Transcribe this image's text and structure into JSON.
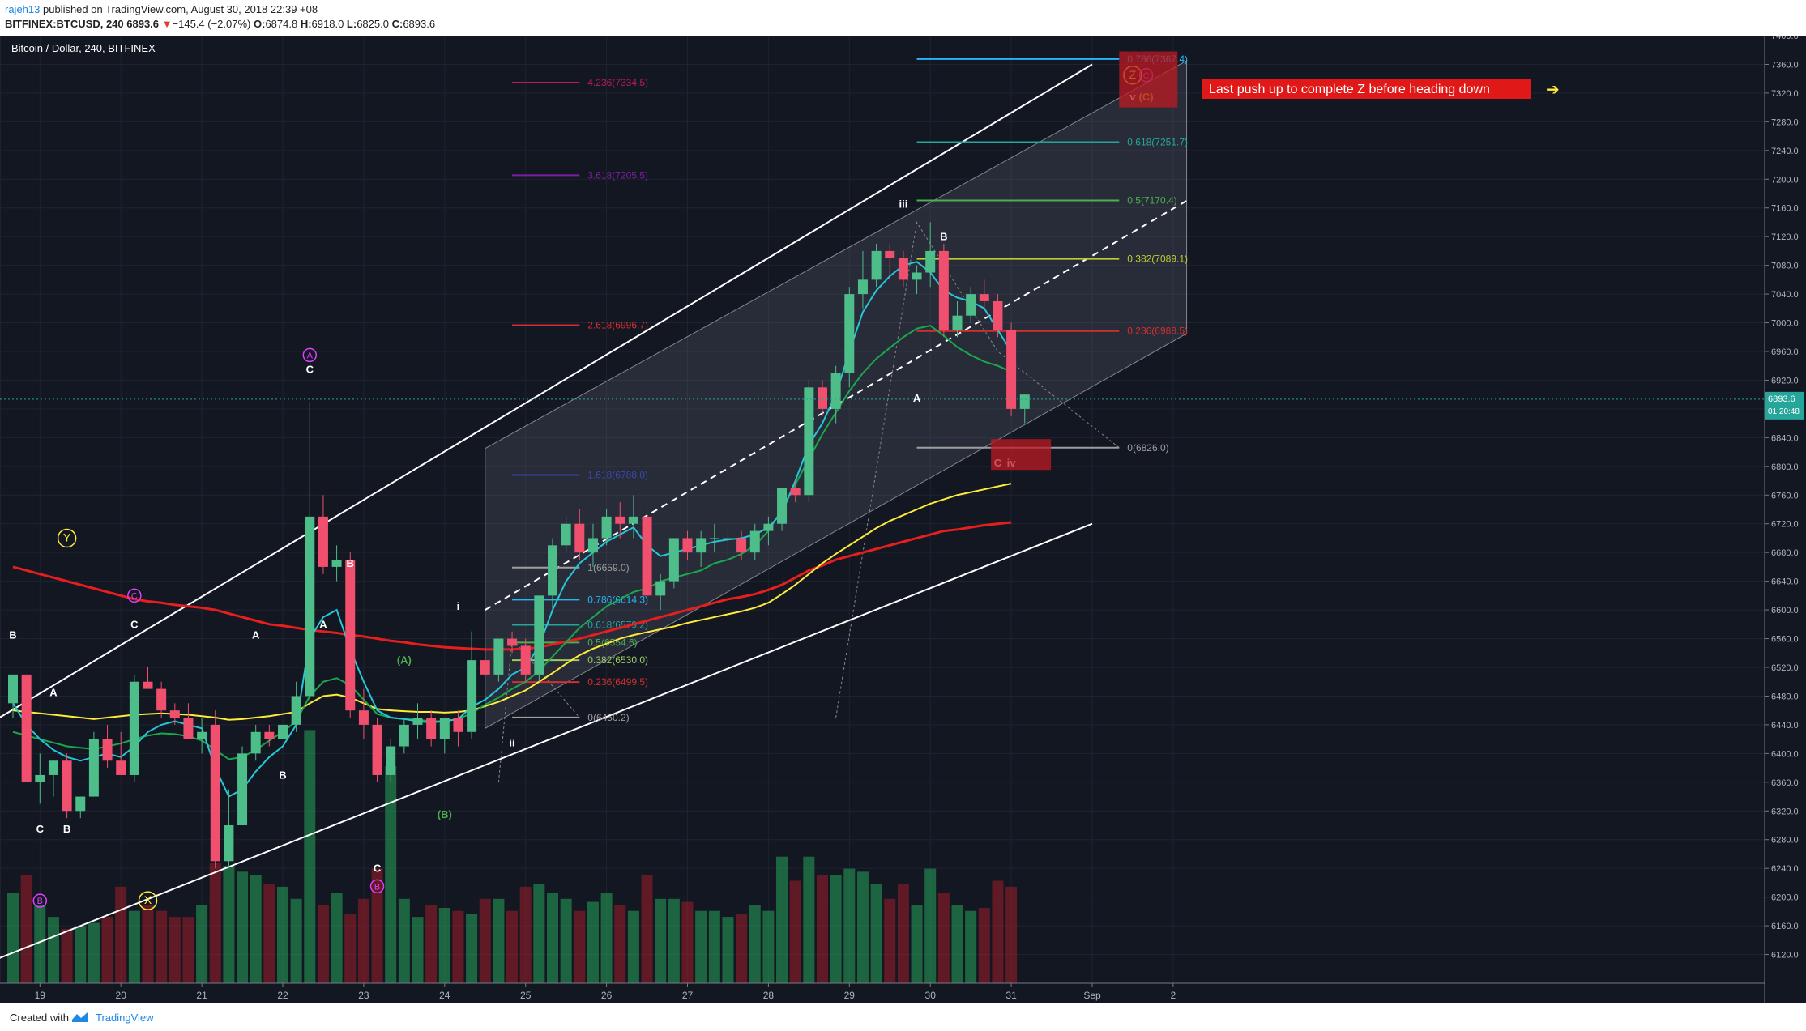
{
  "header": {
    "user": "rajeh13",
    "published": " published on TradingView.com, August 30, 2018 22:39 +08",
    "symbol": "BITFINEX:BTCUSD, 240",
    "price": " 6893.6 ",
    "arrow": "▼",
    "change": "−145.4 (−2.07%)",
    "o_label": " O:",
    "o": "6874.8",
    "h_label": " H:",
    "h": "6918.0",
    "l_label": " L:",
    "l": "6825.0",
    "c_label": " C:",
    "c": "6893.6"
  },
  "footer": {
    "created": "Created with",
    "brand": "TradingView"
  },
  "chart_data": {
    "type": "candlestick",
    "title": "Bitcoin / Dollar, 240, BITFINEX",
    "ylim": [
      6080,
      7400
    ],
    "y_ticks": [
      "7400.0",
      "7360.0",
      "7320.0",
      "7280.0",
      "7240.0",
      "7200.0",
      "7160.0",
      "7120.0",
      "7080.0",
      "7040.0",
      "7000.0",
      "6960.0",
      "6920.0",
      "6880.0",
      "6840.0",
      "6800.0",
      "6760.0",
      "6720.0",
      "6680.0",
      "6640.0",
      "6600.0",
      "6560.0",
      "6520.0",
      "6480.0",
      "6440.0",
      "6400.0",
      "6360.0",
      "6320.0",
      "6280.0",
      "6240.0",
      "6200.0",
      "6160.0",
      "6120.0"
    ],
    "x_ticks": [
      {
        "label": "19",
        "i": 2
      },
      {
        "label": "20",
        "i": 8
      },
      {
        "label": "21",
        "i": 14
      },
      {
        "label": "22",
        "i": 20
      },
      {
        "label": "23",
        "i": 26
      },
      {
        "label": "24",
        "i": 32
      },
      {
        "label": "25",
        "i": 38
      },
      {
        "label": "26",
        "i": 44
      },
      {
        "label": "27",
        "i": 50
      },
      {
        "label": "28",
        "i": 56
      },
      {
        "label": "29",
        "i": 62
      },
      {
        "label": "30",
        "i": 68
      },
      {
        "label": "31",
        "i": 74
      },
      {
        "label": "Sep",
        "i": 80
      },
      {
        "label": "2",
        "i": 86
      }
    ],
    "last_price": "6893.6",
    "countdown": "01:20:48",
    "candles": [
      [
        6470,
        6510,
        6450,
        6510
      ],
      [
        6510,
        6510,
        6360,
        6360
      ],
      [
        6360,
        6400,
        6330,
        6370
      ],
      [
        6370,
        6390,
        6340,
        6390
      ],
      [
        6390,
        6400,
        6310,
        6320
      ],
      [
        6320,
        6340,
        6310,
        6340
      ],
      [
        6340,
        6430,
        6340,
        6420
      ],
      [
        6420,
        6440,
        6380,
        6390
      ],
      [
        6390,
        6430,
        6370,
        6370
      ],
      [
        6370,
        6510,
        6360,
        6500
      ],
      [
        6500,
        6520,
        6490,
        6490
      ],
      [
        6490,
        6500,
        6450,
        6460
      ],
      [
        6460,
        6470,
        6440,
        6450
      ],
      [
        6450,
        6470,
        6420,
        6420
      ],
      [
        6420,
        6450,
        6400,
        6430
      ],
      [
        6440,
        6460,
        6240,
        6250
      ],
      [
        6250,
        6350,
        6240,
        6300
      ],
      [
        6300,
        6410,
        6300,
        6400
      ],
      [
        6400,
        6440,
        6390,
        6430
      ],
      [
        6430,
        6440,
        6410,
        6420
      ],
      [
        6420,
        6440,
        6420,
        6440
      ],
      [
        6440,
        6500,
        6430,
        6480
      ],
      [
        6480,
        6890,
        6470,
        6730
      ],
      [
        6730,
        6760,
        6650,
        6660
      ],
      [
        6660,
        6690,
        6640,
        6670
      ],
      [
        6670,
        6680,
        6450,
        6460
      ],
      [
        6460,
        6490,
        6420,
        6440
      ],
      [
        6440,
        6450,
        6360,
        6370
      ],
      [
        6370,
        6420,
        6360,
        6410
      ],
      [
        6410,
        6450,
        6400,
        6440
      ],
      [
        6440,
        6470,
        6420,
        6450
      ],
      [
        6450,
        6460,
        6410,
        6420
      ],
      [
        6420,
        6450,
        6400,
        6450
      ],
      [
        6450,
        6460,
        6410,
        6430
      ],
      [
        6430,
        6570,
        6420,
        6530
      ],
      [
        6530,
        6550,
        6510,
        6510
      ],
      [
        6510,
        6560,
        6500,
        6560
      ],
      [
        6560,
        6570,
        6540,
        6550
      ],
      [
        6550,
        6560,
        6500,
        6510
      ],
      [
        6510,
        6620,
        6500,
        6620
      ],
      [
        6620,
        6700,
        6600,
        6690
      ],
      [
        6690,
        6730,
        6680,
        6720
      ],
      [
        6720,
        6740,
        6670,
        6680
      ],
      [
        6680,
        6720,
        6660,
        6700
      ],
      [
        6700,
        6740,
        6690,
        6730
      ],
      [
        6730,
        6750,
        6700,
        6720
      ],
      [
        6720,
        6760,
        6700,
        6730
      ],
      [
        6730,
        6740,
        6610,
        6620
      ],
      [
        6620,
        6650,
        6600,
        6640
      ],
      [
        6640,
        6700,
        6630,
        6700
      ],
      [
        6700,
        6710,
        6670,
        6680
      ],
      [
        6680,
        6710,
        6660,
        6700
      ],
      [
        6700,
        6720,
        6680,
        6700
      ],
      [
        6700,
        6710,
        6670,
        6700
      ],
      [
        6700,
        6710,
        6670,
        6680
      ],
      [
        6680,
        6720,
        6670,
        6710
      ],
      [
        6710,
        6730,
        6690,
        6720
      ],
      [
        6720,
        6760,
        6710,
        6770
      ],
      [
        6770,
        6780,
        6750,
        6760
      ],
      [
        6760,
        6920,
        6750,
        6910
      ],
      [
        6910,
        6920,
        6870,
        6880
      ],
      [
        6880,
        6940,
        6860,
        6930
      ],
      [
        6930,
        7050,
        6910,
        7040
      ],
      [
        7040,
        7100,
        7020,
        7060
      ],
      [
        7060,
        7110,
        7050,
        7100
      ],
      [
        7100,
        7110,
        7060,
        7090
      ],
      [
        7090,
        7100,
        7050,
        7060
      ],
      [
        7060,
        7080,
        7040,
        7070
      ],
      [
        7070,
        7140,
        7050,
        7100
      ],
      [
        7100,
        7110,
        6980,
        6990
      ],
      [
        6990,
        7030,
        6980,
        7010
      ],
      [
        7010,
        7050,
        7000,
        7040
      ],
      [
        7040,
        7060,
        7020,
        7030
      ],
      [
        7030,
        7040,
        6980,
        6990
      ],
      [
        6990,
        7000,
        6870,
        6880
      ],
      [
        6880,
        6900,
        6860,
        6900
      ]
    ],
    "volumes": [
      150,
      180,
      130,
      110,
      90,
      95,
      100,
      110,
      160,
      120,
      130,
      120,
      110,
      110,
      130,
      200,
      195,
      185,
      180,
      165,
      160,
      140,
      420,
      130,
      150,
      115,
      140,
      190,
      360,
      140,
      110,
      130,
      125,
      120,
      115,
      140,
      140,
      120,
      160,
      165,
      150,
      140,
      120,
      135,
      150,
      130,
      120,
      180,
      140,
      140,
      135,
      120,
      120,
      110,
      115,
      130,
      120,
      210,
      170,
      210,
      180,
      180,
      190,
      185,
      165,
      140,
      165,
      130,
      190,
      150,
      130,
      120,
      125,
      170,
      160
    ],
    "moving_averages": [
      {
        "color": "#e61e1e",
        "values": [
          6660,
          6655,
          6650,
          6645,
          6640,
          6635,
          6630,
          6625,
          6620,
          6615,
          6612,
          6610,
          6607,
          6605,
          6603,
          6600,
          6595,
          6590,
          6585,
          6580,
          6578,
          6575,
          6572,
          6570,
          6568,
          6565,
          6563,
          6560,
          6557,
          6555,
          6552,
          6550,
          6548,
          6547,
          6546,
          6545,
          6545,
          6545,
          6546,
          6548,
          6552,
          6556,
          6560,
          6565,
          6570,
          6575,
          6580,
          6585,
          6590,
          6595,
          6600,
          6605,
          6610,
          6615,
          6618,
          6622,
          6628,
          6635,
          6645,
          6655,
          6662,
          6670,
          6675,
          6680,
          6685,
          6690,
          6695,
          6700,
          6705,
          6710,
          6712,
          6715,
          6718,
          6720,
          6722
        ]
      },
      {
        "color": "#ffeb3b",
        "values": [
          6460,
          6458,
          6456,
          6454,
          6452,
          6450,
          6448,
          6450,
          6452,
          6454,
          6455,
          6456,
          6455,
          6454,
          6452,
          6450,
          6447,
          6448,
          6450,
          6452,
          6455,
          6458,
          6470,
          6480,
          6482,
          6478,
          6470,
          6462,
          6460,
          6459,
          6458,
          6458,
          6457,
          6458,
          6460,
          6466,
          6472,
          6480,
          6488,
          6500,
          6512,
          6525,
          6537,
          6546,
          6553,
          6560,
          6565,
          6569,
          6573,
          6577,
          6582,
          6586,
          6590,
          6594,
          6598,
          6603,
          6610,
          6622,
          6635,
          6650,
          6665,
          6678,
          6690,
          6702,
          6714,
          6724,
          6732,
          6740,
          6748,
          6754,
          6760,
          6764,
          6768,
          6772,
          6776
        ]
      },
      {
        "color": "#1aa84d",
        "values": [
          6430,
          6425,
          6420,
          6415,
          6410,
          6408,
          6406,
          6410,
          6414,
          6420,
          6425,
          6428,
          6427,
          6424,
          6418,
          6405,
          6392,
          6395,
          6405,
          6418,
          6430,
          6445,
          6480,
          6500,
          6505,
          6495,
          6475,
          6455,
          6450,
          6448,
          6447,
          6445,
          6445,
          6448,
          6456,
          6468,
          6478,
          6490,
          6500,
          6515,
          6535,
          6555,
          6575,
          6590,
          6605,
          6615,
          6625,
          6630,
          6640,
          6645,
          6650,
          6655,
          6665,
          6670,
          6678,
          6690,
          6710,
          6740,
          6775,
          6810,
          6845,
          6875,
          6905,
          6930,
          6950,
          6965,
          6980,
          6992,
          6996,
          6982,
          6966,
          6955,
          6946,
          6940,
          6932
        ]
      },
      {
        "color": "#26c6da",
        "values": [
          6470,
          6440,
          6420,
          6405,
          6395,
          6390,
          6395,
          6400,
          6395,
          6410,
          6430,
          6440,
          6445,
          6440,
          6435,
          6380,
          6340,
          6350,
          6375,
          6395,
          6410,
          6440,
          6560,
          6590,
          6600,
          6545,
          6500,
          6460,
          6450,
          6448,
          6445,
          6443,
          6445,
          6448,
          6465,
          6475,
          6490,
          6510,
          6520,
          6550,
          6600,
          6640,
          6665,
          6680,
          6695,
          6705,
          6715,
          6690,
          6675,
          6680,
          6685,
          6690,
          6695,
          6698,
          6700,
          6705,
          6715,
          6735,
          6780,
          6830,
          6860,
          6900,
          6960,
          7015,
          7045,
          7065,
          7080,
          7085,
          7070,
          7045,
          7035,
          7030,
          7020,
          6990,
          6960
        ]
      }
    ],
    "channel_lines": [
      {
        "style": "solid",
        "color": "#ffffff",
        "p1": [
          -1,
          6450
        ],
        "p2": [
          80,
          7360
        ]
      },
      {
        "style": "solid",
        "color": "#ffffff",
        "p1": [
          -1,
          6115
        ],
        "p2": [
          80,
          6720
        ]
      },
      {
        "style": "dashed",
        "color": "#ffffff",
        "p1": [
          35,
          6600
        ],
        "p2": [
          87,
          7170
        ]
      }
    ],
    "channel_box": {
      "p1": [
        35,
        6825
      ],
      "p2": [
        87,
        7365
      ],
      "p3": [
        87,
        6985
      ],
      "p4": [
        35,
        6435
      ]
    },
    "fib_left": [
      {
        "label": "4.236(7334.5)",
        "y": 7334.5,
        "color": "#c2185b"
      },
      {
        "label": "3.618(7205.5)",
        "y": 7205.5,
        "color": "#7b1fa2"
      },
      {
        "label": "2.618(6996.7)",
        "y": 6996.7,
        "color": "#d32f2f"
      },
      {
        "label": "1.618(6788.0)",
        "y": 6788.0,
        "color": "#3949ab"
      },
      {
        "label": "1(6659.0)",
        "y": 6659.0,
        "color": "#9e9e9e"
      },
      {
        "label": "0.786(6614.3)",
        "y": 6614.3,
        "color": "#29b6f6"
      },
      {
        "label": "0.618(6579.2)",
        "y": 6579.2,
        "color": "#26a69a"
      },
      {
        "label": "0.5(6554.6)",
        "y": 6554.6,
        "color": "#4caf50"
      },
      {
        "label": "0.382(6530.0)",
        "y": 6530.0,
        "color": "#9ccc65"
      },
      {
        "label": "0.236(6499.5)",
        "y": 6499.5,
        "color": "#d32f2f"
      },
      {
        "label": "0(6450.2)",
        "y": 6450.2,
        "color": "#9e9e9e"
      }
    ],
    "fib_right": [
      {
        "label": "0.786(7367.4)",
        "y": 7367.4,
        "color": "#29b6f6"
      },
      {
        "label": "0.618(7251.7)",
        "y": 7251.7,
        "color": "#26a69a"
      },
      {
        "label": "0.5(7170.4)",
        "y": 7170.4,
        "color": "#4caf50"
      },
      {
        "label": "0.382(7089.1)",
        "y": 7089.1,
        "color": "#c0ca33"
      },
      {
        "label": "0.236(6988.5)",
        "y": 6988.5,
        "color": "#d32f2f"
      },
      {
        "label": "0(6826.0)",
        "y": 6826.0,
        "color": "#9e9e9e"
      }
    ],
    "wave_labels": [
      {
        "t": "B",
        "i": 0,
        "y": 6560,
        "c": "#ffffff"
      },
      {
        "t": "A",
        "i": 3,
        "y": 6480,
        "c": "#ffffff"
      },
      {
        "t": "C",
        "i": 2,
        "y": 6290,
        "c": "#ffffff"
      },
      {
        "t": "B",
        "i": 4,
        "y": 6290,
        "c": "#ffffff"
      },
      {
        "t": "C",
        "i": 9,
        "y": 6575,
        "c": "#ffffff"
      },
      {
        "t": "A",
        "i": 18,
        "y": 6560,
        "c": "#ffffff"
      },
      {
        "t": "B",
        "i": 20,
        "y": 6365,
        "c": "#ffffff"
      },
      {
        "t": "C",
        "i": 22,
        "y": 6930,
        "c": "#ffffff"
      },
      {
        "t": "A",
        "i": 23,
        "y": 6575,
        "c": "#ffffff"
      },
      {
        "t": "B",
        "i": 25,
        "y": 6660,
        "c": "#ffffff"
      },
      {
        "t": "C",
        "i": 27,
        "y": 6235,
        "c": "#ffffff"
      },
      {
        "t": "(A)",
        "i": 29,
        "y": 6525,
        "c": "#4caf50"
      },
      {
        "t": "(B)",
        "i": 32,
        "y": 6310,
        "c": "#4caf50"
      },
      {
        "t": "i",
        "i": 33,
        "y": 6600,
        "c": "#ffffff"
      },
      {
        "t": "ii",
        "i": 37,
        "y": 6410,
        "c": "#ffffff"
      },
      {
        "t": "iii",
        "i": 66,
        "y": 7160,
        "c": "#ffffff"
      },
      {
        "t": "A",
        "i": 67,
        "y": 6890,
        "c": "#ffffff"
      },
      {
        "t": "B",
        "i": 69,
        "y": 7115,
        "c": "#ffffff"
      },
      {
        "t": "C",
        "i": 73,
        "y": 6800,
        "c": "#ffffff"
      },
      {
        "t": "iv",
        "i": 74,
        "y": 6800,
        "c": "#ffffff"
      },
      {
        "t": "v",
        "i": 83,
        "y": 7310,
        "c": "#ffffff"
      },
      {
        "t": "(C)",
        "i": 84,
        "y": 7310,
        "c": "#c0ca33"
      }
    ],
    "circle_labels": [
      {
        "t": "A",
        "i": 22,
        "y": 6955,
        "c": "#e040fb"
      },
      {
        "t": "B",
        "i": 2,
        "y": 6195,
        "c": "#e040fb"
      },
      {
        "t": "C",
        "i": 9,
        "y": 6620,
        "c": "#e040fb"
      },
      {
        "t": "B",
        "i": 27,
        "y": 6215,
        "c": "#e040fb"
      },
      {
        "t": "Y",
        "i": 4,
        "y": 6700,
        "c": "#ffeb3b"
      },
      {
        "t": "X",
        "i": 10,
        "y": 6195,
        "c": "#ffeb3b"
      },
      {
        "t": "Z",
        "i": 83,
        "y": 7345,
        "c": "#ffeb3b"
      },
      {
        "t": "C",
        "i": 84,
        "y": 7345,
        "c": "#e040fb"
      }
    ],
    "annotation": {
      "text": "Last push up to complete Z before heading down",
      "arrow": "➔"
    }
  }
}
